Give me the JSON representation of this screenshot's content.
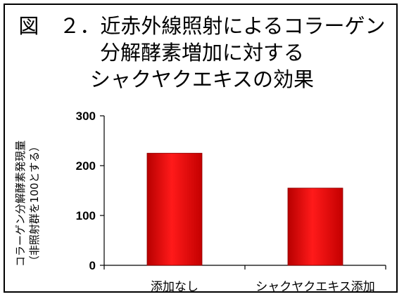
{
  "chart_data": {
    "type": "bar",
    "title_lines": [
      "図　２．近赤外線照射によるコラーゲン",
      "分解酵素増加に対する",
      "シャクヤクエキスの効果"
    ],
    "ylabel_lines": [
      "コラーゲン分解酵素発現量",
      "（非照射群を100とする）"
    ],
    "xlabel": "",
    "categories": [
      "添加なし",
      "シャクヤクエキス添加"
    ],
    "values": [
      225,
      155
    ],
    "ylim": [
      0,
      300
    ],
    "yticks": [
      0,
      100,
      200,
      300
    ],
    "grid": false,
    "legend": "none",
    "bar_color": "#e00000"
  }
}
